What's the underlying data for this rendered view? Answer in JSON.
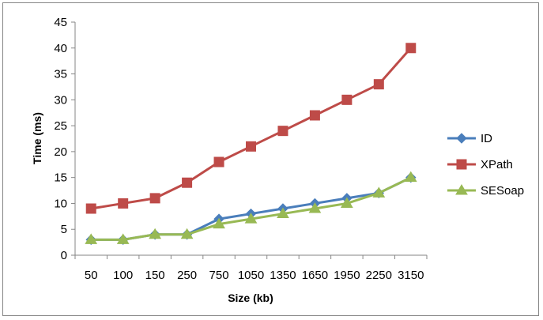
{
  "chart_data": {
    "type": "line",
    "title": "",
    "xlabel": "Size (kb)",
    "ylabel": "Time (ms)",
    "categories": [
      "50",
      "100",
      "150",
      "250",
      "750",
      "1050",
      "1350",
      "1650",
      "1950",
      "2250",
      "3150"
    ],
    "ylim": [
      0,
      45
    ],
    "yticks": [
      "0",
      "5",
      "10",
      "15",
      "20",
      "25",
      "30",
      "35",
      "40",
      "45"
    ],
    "grid": false,
    "legend": "right",
    "series": [
      {
        "name": "ID",
        "color": "#4a7ebb",
        "marker": "diamond",
        "values": [
          3,
          3,
          4,
          4,
          7,
          8,
          9,
          10,
          11,
          12,
          15
        ]
      },
      {
        "name": "XPath",
        "color": "#be4b48",
        "marker": "square",
        "values": [
          9,
          10,
          11,
          14,
          18,
          21,
          24,
          27,
          30,
          33,
          40
        ]
      },
      {
        "name": "SESoap",
        "color": "#98b954",
        "marker": "triangle",
        "values": [
          3,
          3,
          4,
          4,
          6,
          7,
          8,
          9,
          10,
          12,
          15
        ]
      }
    ]
  }
}
